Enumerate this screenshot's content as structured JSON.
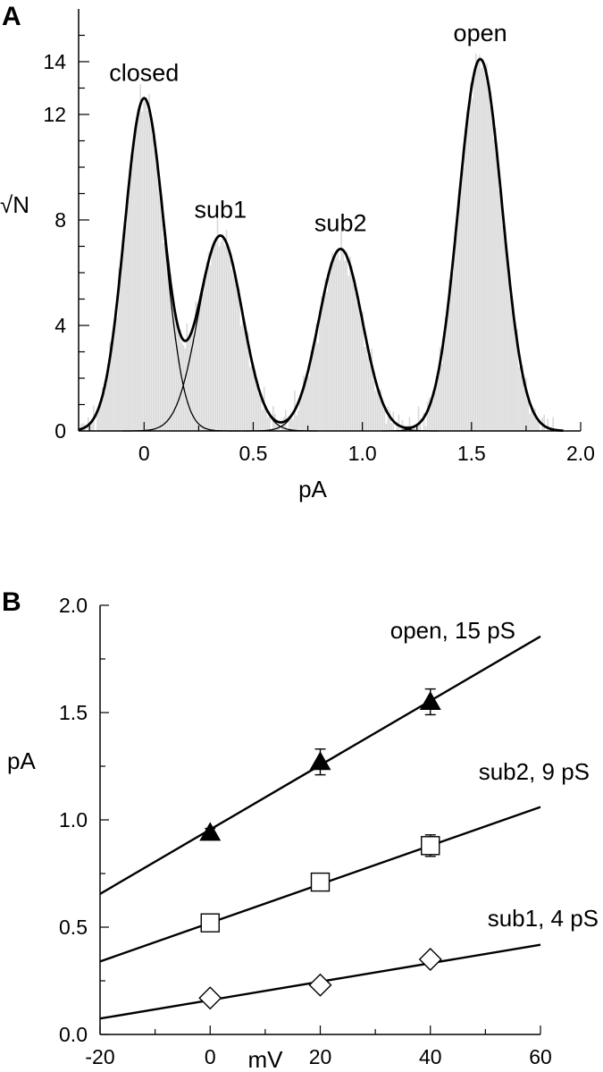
{
  "chart_data": [
    {
      "panel": "A",
      "type": "bar",
      "xlabel": "pA",
      "ylabel": "√N",
      "xlim": [
        -0.3,
        2.0
      ],
      "ylim": [
        0,
        16
      ],
      "x_ticks": [
        0,
        0.5,
        1.0,
        1.5,
        2.0
      ],
      "x_tick_labels": [
        "0",
        "0.5",
        "1.0",
        "1.5",
        "2.0"
      ],
      "y_ticks": [
        0,
        4,
        8,
        12,
        14
      ],
      "y_tick_labels": [
        "0",
        "4",
        "8",
        "12",
        "14"
      ],
      "histogram_x_range": [
        -0.3,
        1.92
      ],
      "peaks": [
        {
          "name": "closed",
          "mean": 0.0,
          "amplitude": 12.6,
          "sd": 0.09
        },
        {
          "name": "sub1",
          "mean": 0.35,
          "amplitude": 7.4,
          "sd": 0.1
        },
        {
          "name": "sub2",
          "mean": 0.9,
          "amplitude": 6.9,
          "sd": 0.1
        },
        {
          "name": "open",
          "mean": 1.54,
          "amplitude": 14.1,
          "sd": 0.1
        }
      ]
    },
    {
      "panel": "B",
      "type": "scatter",
      "xlabel": "mV",
      "ylabel": "pA",
      "xlim": [
        -20,
        60
      ],
      "ylim": [
        0,
        2.0
      ],
      "x_ticks": [
        -20,
        0,
        20,
        40,
        60
      ],
      "x_tick_labels": [
        "-20",
        "0",
        "20",
        "40",
        "60"
      ],
      "y_ticks": [
        0,
        0.5,
        1.0,
        1.5,
        2.0
      ],
      "y_tick_labels": [
        "0.0",
        "0.5",
        "1.0",
        "1.5",
        "2.0"
      ],
      "x": [
        0,
        20,
        40
      ],
      "series": [
        {
          "name": "open, 15 pS",
          "marker": "filled-triangle",
          "values": [
            0.94,
            1.27,
            1.55
          ],
          "errors": [
            0.02,
            0.06,
            0.06
          ],
          "fit": {
            "slope": 0.015,
            "intercept": 0.955
          }
        },
        {
          "name": "sub2, 9 pS",
          "marker": "open-square",
          "values": [
            0.52,
            0.71,
            0.88
          ],
          "errors": [
            0.01,
            0.01,
            0.05
          ],
          "fit": {
            "slope": 0.009,
            "intercept": 0.52
          }
        },
        {
          "name": "sub1, 4 pS",
          "marker": "open-diamond",
          "values": [
            0.17,
            0.23,
            0.35
          ],
          "errors": [
            0.0,
            0.0,
            0.0
          ],
          "fit": {
            "slope": 0.0043,
            "intercept": 0.16
          }
        }
      ]
    }
  ]
}
